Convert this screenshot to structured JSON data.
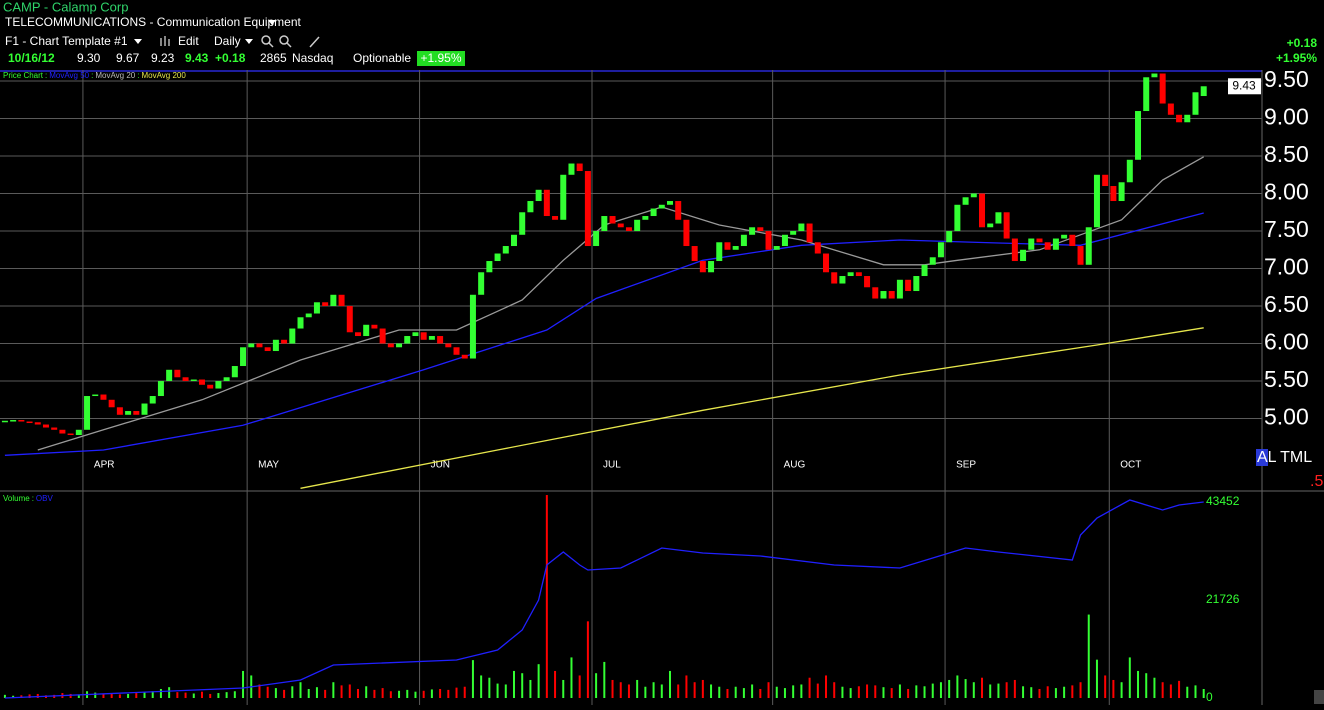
{
  "header": {
    "symbol": "CAMP - Calamp Corp",
    "industry": "TELECOMMUNICATIONS - Communication Equipment",
    "template": "F1 - Chart Template #1",
    "edit": "Edit",
    "period": "Daily",
    "date": "10/16/12",
    "open": "9.30",
    "high": "9.67",
    "low": "9.23",
    "last": "9.43",
    "change": "+0.18",
    "volume": "2865",
    "exchange": "Nasdaq",
    "optionable": "Optionable",
    "change_pct": "+1.95%"
  },
  "chart_data": [
    {
      "type": "candlestick",
      "title": "Price Chart",
      "separator": ":",
      "open": [
        4.95,
        4.97,
        4.98,
        4.96,
        4.95,
        4.92,
        4.88,
        4.85,
        4.8,
        4.78,
        4.85,
        5.3,
        5.32,
        5.25,
        5.15,
        5.05,
        5.1,
        5.05,
        5.2,
        5.3,
        5.5,
        5.65,
        5.55,
        5.5,
        5.52,
        5.45,
        5.4,
        5.5,
        5.55,
        5.7,
        5.95,
        6.0,
        5.95,
        5.9,
        6.05,
        6.0,
        6.2,
        6.35,
        6.4,
        6.55,
        6.5,
        6.65,
        6.5,
        6.15,
        6.1,
        6.25,
        6.2,
        6.0,
        5.95,
        6.0,
        6.1,
        6.15,
        6.05,
        6.1,
        6.0,
        5.95,
        5.85,
        5.8,
        6.65,
        6.95,
        7.1,
        7.2,
        7.3,
        7.45,
        7.75,
        7.9,
        8.05,
        7.7,
        7.65,
        8.25,
        8.4,
        8.3,
        7.3,
        7.5,
        7.7,
        7.6,
        7.55,
        7.5,
        7.65,
        7.7,
        7.8,
        7.85,
        7.9,
        7.65,
        7.3,
        7.1,
        6.95,
        7.1,
        7.35,
        7.25,
        7.3,
        7.45,
        7.55,
        7.5,
        7.25,
        7.3,
        7.45,
        7.5,
        7.6,
        7.35,
        7.2,
        6.95,
        6.8,
        6.9,
        6.95,
        6.9,
        6.75,
        6.6,
        6.7,
        6.6,
        6.85,
        6.7,
        6.9,
        7.05,
        7.15,
        7.35,
        7.5,
        7.85,
        7.95,
        8.0,
        7.55,
        7.6,
        7.75,
        7.4,
        7.1,
        7.25,
        7.4,
        7.35,
        7.25,
        7.4,
        7.45,
        7.3,
        7.05,
        7.55,
        8.25,
        8.1,
        7.9,
        8.15,
        8.45,
        9.1,
        9.55,
        9.6,
        9.2,
        9.05,
        8.95,
        9.05,
        9.3
      ],
      "close": [
        4.97,
        4.98,
        4.96,
        4.95,
        4.92,
        4.88,
        4.85,
        4.8,
        4.78,
        4.85,
        5.3,
        5.32,
        5.25,
        5.15,
        5.05,
        5.1,
        5.05,
        5.2,
        5.3,
        5.5,
        5.65,
        5.55,
        5.5,
        5.52,
        5.45,
        5.4,
        5.5,
        5.55,
        5.7,
        5.95,
        6.0,
        5.95,
        5.9,
        6.05,
        6.0,
        6.2,
        6.35,
        6.4,
        6.55,
        6.5,
        6.65,
        6.5,
        6.15,
        6.1,
        6.25,
        6.2,
        6.0,
        5.95,
        6.0,
        6.1,
        6.15,
        6.05,
        6.1,
        6.0,
        5.95,
        5.85,
        5.8,
        6.65,
        6.95,
        7.1,
        7.2,
        7.3,
        7.45,
        7.75,
        7.9,
        8.05,
        7.7,
        7.65,
        8.25,
        8.4,
        8.3,
        7.3,
        7.5,
        7.7,
        7.6,
        7.55,
        7.5,
        7.65,
        7.7,
        7.8,
        7.85,
        7.9,
        7.65,
        7.3,
        7.1,
        6.95,
        7.1,
        7.35,
        7.25,
        7.3,
        7.45,
        7.55,
        7.5,
        7.25,
        7.3,
        7.45,
        7.5,
        7.6,
        7.35,
        7.2,
        6.95,
        6.8,
        6.9,
        6.95,
        6.9,
        6.75,
        6.6,
        6.7,
        6.6,
        6.85,
        6.7,
        6.9,
        7.05,
        7.15,
        7.35,
        7.5,
        7.85,
        7.95,
        8.0,
        7.55,
        7.6,
        7.75,
        7.4,
        7.1,
        7.25,
        7.4,
        7.35,
        7.25,
        7.4,
        7.45,
        7.3,
        7.05,
        7.55,
        8.25,
        8.1,
        7.9,
        8.15,
        8.45,
        9.1,
        9.55,
        9.6,
        9.2,
        9.05,
        8.95,
        9.05,
        9.35,
        9.43
      ],
      "up_color": "#33ff33",
      "down_color": "#ff0000",
      "series": [
        {
          "name": "MovAvg 50",
          "color": "#2020ff",
          "x": [
            0,
            12,
            29,
            51,
            66,
            72,
            85,
            97,
            109,
            121,
            131,
            146
          ],
          "values": [
            4.51,
            4.58,
            4.91,
            5.65,
            6.18,
            6.6,
            7.11,
            7.31,
            7.38,
            7.34,
            7.31,
            7.74
          ]
        },
        {
          "name": "MovAvg 20",
          "color": "#9a9a9a",
          "x": [
            4,
            12,
            24,
            36,
            48,
            55,
            63,
            68,
            73,
            80,
            87,
            97,
            107,
            112,
            116,
            126,
            131,
            136,
            141,
            146
          ],
          "values": [
            4.58,
            4.85,
            5.25,
            5.78,
            6.18,
            6.18,
            6.58,
            7.11,
            7.58,
            7.82,
            7.58,
            7.38,
            7.05,
            7.05,
            7.11,
            7.25,
            7.45,
            7.65,
            8.18,
            8.49
          ]
        },
        {
          "name": "MovAvg 200",
          "color": "#e6e64c",
          "x": [
            36,
            60,
            85,
            109,
            133,
            146
          ],
          "values": [
            4.07,
            4.58,
            5.11,
            5.58,
            5.98,
            6.21
          ]
        }
      ],
      "xlim": [
        -0.6,
        153.1
      ],
      "xticks": [
        {
          "value": 9.5,
          "label": "APR"
        },
        {
          "value": 29.5,
          "label": "MAY"
        },
        {
          "value": 50.5,
          "label": "JUN"
        },
        {
          "value": 71.5,
          "label": "JUL"
        },
        {
          "value": 93.5,
          "label": "AUG"
        },
        {
          "value": 114.5,
          "label": "SEP"
        },
        {
          "value": 134.5,
          "label": "OCT"
        }
      ],
      "ylim": [
        4.047,
        9.647
      ],
      "yticks": [
        {
          "value": 5,
          "label": "5.00"
        },
        {
          "value": 5.5,
          "label": "5.50"
        },
        {
          "value": 6,
          "label": "6.00"
        },
        {
          "value": 6.5,
          "label": "6.50"
        },
        {
          "value": 7,
          "label": "7.00"
        },
        {
          "value": 7.5,
          "label": "7.50"
        },
        {
          "value": 8,
          "label": "8.00"
        },
        {
          "value": 8.5,
          "label": "8.50"
        },
        {
          "value": 9,
          "label": "9.00"
        },
        {
          "value": 9.5,
          "label": "9.50"
        }
      ],
      "grid": true
    },
    {
      "type": "bar",
      "title": "Volume",
      "values": [
        700,
        500,
        600,
        800,
        900,
        600,
        700,
        1100,
        900,
        800,
        1500,
        1200,
        900,
        1000,
        800,
        900,
        1100,
        1300,
        1500,
        2000,
        2400,
        1300,
        1200,
        1000,
        1400,
        900,
        1100,
        1300,
        1500,
        6000,
        5000,
        3000,
        2500,
        2200,
        1800,
        2600,
        3500,
        2000,
        2400,
        1800,
        3500,
        2800,
        3000,
        2000,
        2600,
        1800,
        2200,
        1500,
        1600,
        1800,
        1400,
        1600,
        1900,
        2000,
        1800,
        2300,
        2500,
        8400,
        5000,
        4500,
        3200,
        3000,
        6000,
        5500,
        4000,
        7500,
        45000,
        6000,
        4000,
        9000,
        5000,
        17000,
        5500,
        8000,
        4000,
        3500,
        3000,
        4000,
        2500,
        3500,
        3000,
        6000,
        3000,
        5000,
        3500,
        4000,
        3000,
        2500,
        2000,
        2500,
        2200,
        3000,
        2000,
        3500,
        2500,
        2200,
        2800,
        3000,
        4500,
        3200,
        5000,
        3500,
        2500,
        2200,
        2600,
        3000,
        2800,
        2400,
        2200,
        3000,
        2000,
        2800,
        2600,
        3200,
        3500,
        4000,
        5000,
        4200,
        3500,
        4500,
        3000,
        3200,
        3500,
        4000,
        2600,
        2400,
        2000,
        2600,
        2200,
        2500,
        2800,
        3500,
        18500,
        8500,
        5000,
        4000,
        3500,
        9000,
        6000,
        5500,
        4500,
        3500,
        3000,
        3800,
        2500,
        2800,
        2000
      ],
      "series": [
        {
          "name": "OBV",
          "color": "#2020ff",
          "x": [
            0,
            29,
            36,
            40,
            55,
            60,
            63,
            65,
            66,
            68,
            70,
            71,
            75,
            80,
            85,
            92,
            101,
            109,
            115,
            117,
            121,
            130,
            131,
            133,
            137,
            139,
            141,
            143,
            146
          ],
          "values": [
            0,
            2217,
            3990,
            7316,
            8425,
            10640,
            15076,
            21727,
            29486,
            32370,
            29486,
            28378,
            28820,
            33255,
            32147,
            31482,
            29486,
            28820,
            32147,
            33255,
            32370,
            30595,
            36137,
            39906,
            43895,
            42788,
            41680,
            42788,
            43452
          ]
        }
      ],
      "xlim": [
        -0.6,
        153.1
      ],
      "ylim": [
        -1550,
        45450
      ],
      "yticks": [
        0,
        21726,
        43452
      ]
    }
  ],
  "footer": {
    "label": "AL TML",
    "extra": ".5"
  }
}
